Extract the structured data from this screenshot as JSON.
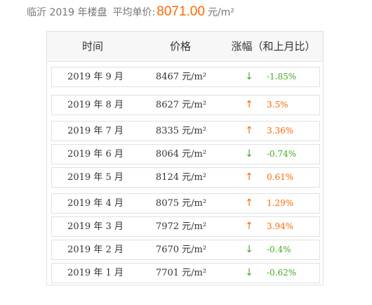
{
  "header": {
    "city_year_label": "临沂 2019 年楼盘",
    "avg_label": "平均单价:",
    "avg_price": "8071.00",
    "avg_unit": "元/m²"
  },
  "table": {
    "columns": [
      "时间",
      "价格",
      "涨幅（和上月比）"
    ],
    "rows": [
      {
        "time": "2019 年 9 月",
        "price": "8467 元/m²",
        "direction": "down",
        "change": "-1.85%"
      },
      {
        "time": "2019 年 8 月",
        "price": "8627 元/m²",
        "direction": "up",
        "change": "3.5%"
      },
      {
        "time": "2019 年 7 月",
        "price": "8335 元/m²",
        "direction": "up",
        "change": "3.36%"
      },
      {
        "time": "2019 年 6 月",
        "price": "8064 元/m²",
        "direction": "down",
        "change": "-0.74%"
      },
      {
        "time": "2019 年 5 月",
        "price": "8124 元/m²",
        "direction": "up",
        "change": "0.61%"
      },
      {
        "time": "2019 年 4 月",
        "price": "8075 元/m²",
        "direction": "up",
        "change": "1.29%"
      },
      {
        "time": "2019 年 3 月",
        "price": "7972 元/m²",
        "direction": "up",
        "change": "3.94%"
      },
      {
        "time": "2019 年 2 月",
        "price": "7670 元/m²",
        "direction": "down",
        "change": "-0.4%"
      },
      {
        "time": "2019 年 1 月",
        "price": "7701 元/m²",
        "direction": "down",
        "change": "-0.62%"
      }
    ]
  },
  "icons": {
    "up": "arrow-up-icon",
    "down": "arrow-down-icon"
  },
  "colors": {
    "price_highlight": "#ff6600",
    "up": "#ff6600",
    "down": "#44aa22"
  }
}
